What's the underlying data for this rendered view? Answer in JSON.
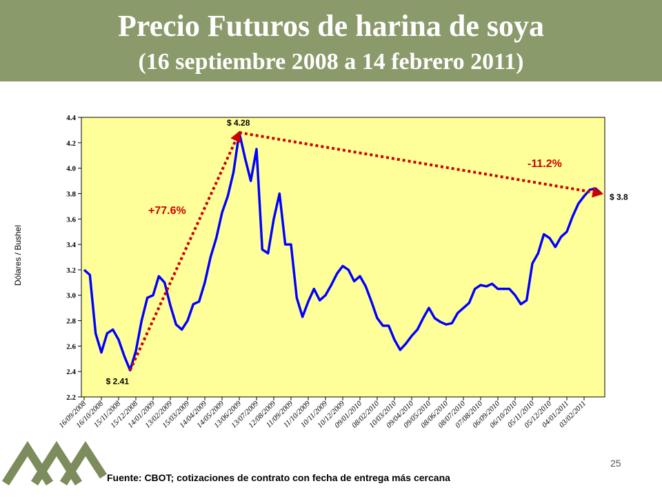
{
  "chart_data": {
    "type": "line",
    "title": "Precio Futuros de harina de soya",
    "subtitle": "(16 septiembre 2008 a 14 febrero 2011)",
    "y_label": "Dólares / Bushel",
    "source": "Fuente: CBOT; cotizaciones de contrato con fecha de entrega más cercana",
    "page_number": "25",
    "annotations": {
      "low": "$ 2.41",
      "high": "$ 4.28",
      "last": "$ 3.8",
      "rise": "+77.6%",
      "fall": "-11.2%"
    },
    "categories": [
      "16/09/2008",
      null,
      null,
      "16/10/2008",
      null,
      null,
      "15/11/2008",
      null,
      null,
      "15/12/2008",
      null,
      null,
      "14/01/2009",
      null,
      null,
      "13/02/2009",
      null,
      null,
      "15/03/2009",
      null,
      null,
      "14/04/2009",
      null,
      null,
      "14/05/2009",
      null,
      null,
      "13/06/2009",
      null,
      null,
      "13/07/2009",
      null,
      null,
      "12/08/2009",
      null,
      null,
      "11/09/2009",
      null,
      null,
      "11/10/2009",
      null,
      null,
      "10/11/2009",
      null,
      null,
      "10/12/2009",
      null,
      null,
      "09/01/2010",
      null,
      null,
      "08/02/2010",
      null,
      null,
      "10/03/2010",
      null,
      null,
      "09/04/2010",
      null,
      null,
      "09/05/2010",
      null,
      null,
      "08/06/2010",
      null,
      null,
      "08/07/2010",
      null,
      null,
      "07/08/2010",
      null,
      null,
      "06/09/2010",
      null,
      null,
      "06/10/2010",
      null,
      null,
      "05/11/2010",
      null,
      null,
      "05/12/2010",
      null,
      null,
      "04/01/2011",
      null,
      null,
      "03/02/2011",
      null,
      null,
      null
    ],
    "series": [
      {
        "name": "Harina de soya",
        "color": "#0000ff",
        "values": [
          3.2,
          3.16,
          2.7,
          2.55,
          2.7,
          2.73,
          2.65,
          2.52,
          2.41,
          2.56,
          2.8,
          2.98,
          3.0,
          3.15,
          3.1,
          2.92,
          2.77,
          2.73,
          2.8,
          2.93,
          2.95,
          3.1,
          3.3,
          3.45,
          3.65,
          3.78,
          3.97,
          4.28,
          4.08,
          3.9,
          4.15,
          3.36,
          3.33,
          3.6,
          3.8,
          3.4,
          3.4,
          2.98,
          2.83,
          2.95,
          3.05,
          2.96,
          3.0,
          3.08,
          3.17,
          3.23,
          3.2,
          3.11,
          3.15,
          3.07,
          2.95,
          2.82,
          2.76,
          2.76,
          2.65,
          2.57,
          2.62,
          2.68,
          2.73,
          2.82,
          2.9,
          2.82,
          2.79,
          2.77,
          2.78,
          2.86,
          2.9,
          2.94,
          3.05,
          3.08,
          3.07,
          3.09,
          3.05,
          3.05,
          3.05,
          3.0,
          2.93,
          2.96,
          3.25,
          3.33,
          3.48,
          3.45,
          3.38,
          3.46,
          3.5,
          3.62,
          3.72,
          3.78,
          3.83,
          3.84,
          3.8
        ]
      }
    ],
    "ylim": [
      2.2,
      4.4
    ],
    "yticks": [
      {
        "value": 2.2,
        "label": "2.2"
      },
      2.4,
      2.6,
      2.8,
      {
        "value": 3.0,
        "label": "3.0"
      },
      3.2,
      3.4,
      3.6,
      3.8,
      {
        "value": 4.0,
        "label": "4.0"
      },
      4.2,
      4.4
    ],
    "background": "#ffff99",
    "arrow_color": "#cc0000"
  }
}
